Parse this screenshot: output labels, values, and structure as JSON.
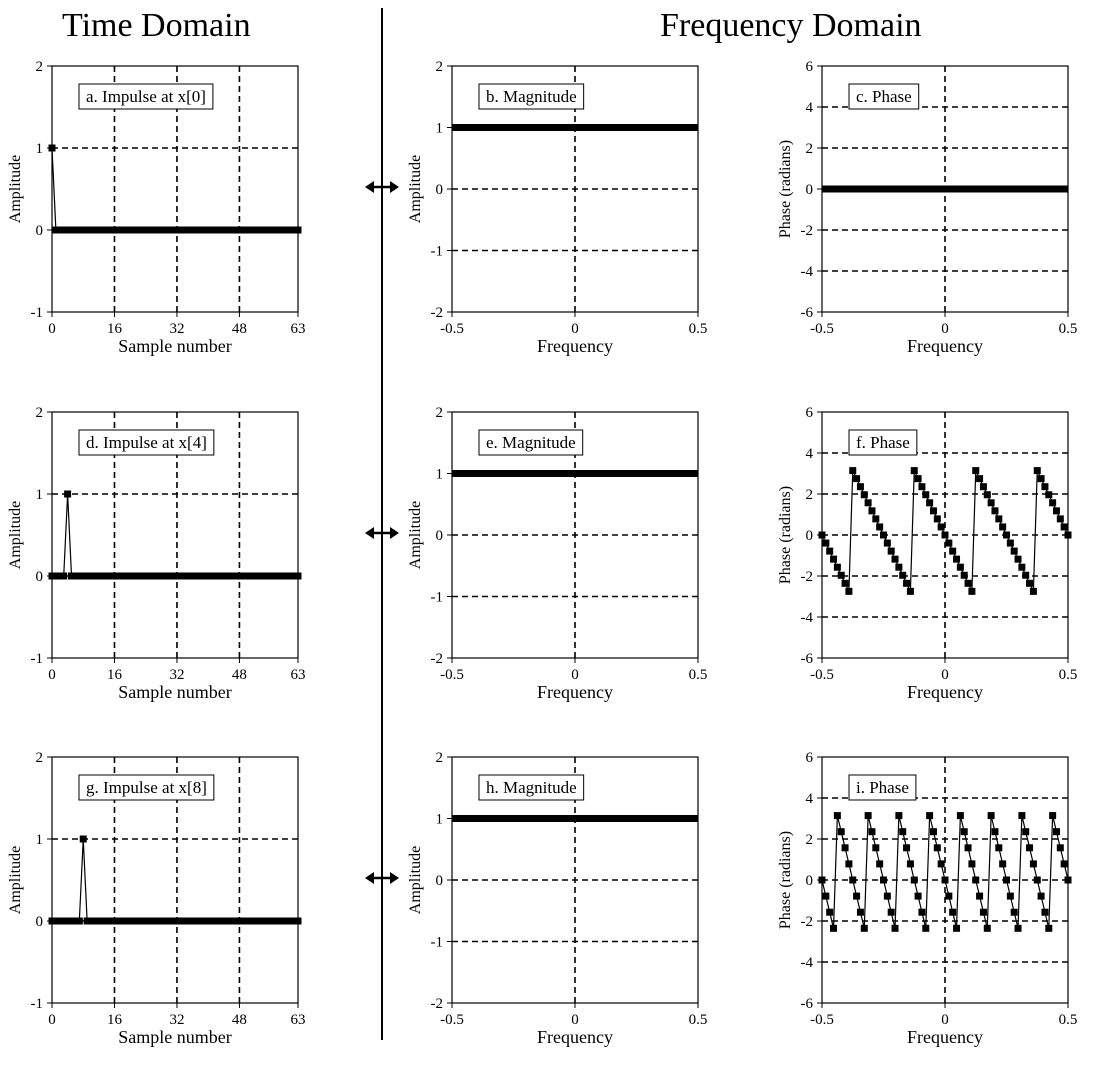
{
  "headings": {
    "time_domain": "Time Domain",
    "frequency_domain": "Frequency Domain"
  },
  "chart_data": [
    {
      "id": "a",
      "type": "line",
      "title": "a.  Impulse at x[0]",
      "xlabel": "Sample number",
      "ylabel": "Amplitude",
      "xlim": [
        0,
        63
      ],
      "ylim": [
        -1,
        2
      ],
      "xticks": [
        0,
        16,
        32,
        48,
        63
      ],
      "xtick_labels": [
        "0",
        "16",
        "32",
        "48",
        "63"
      ],
      "yticks": [
        -1,
        0,
        1,
        2
      ],
      "ytick_labels": [
        "-1",
        "0",
        "1",
        "2"
      ],
      "grid": "dashed",
      "markers": true,
      "series": [
        {
          "x_start": 0,
          "x_step": 1,
          "count": 64,
          "impulse_at": 0,
          "impulse_value": 1,
          "baseline": 0
        }
      ]
    },
    {
      "id": "b",
      "type": "line",
      "title": "b.  Magnitude",
      "xlabel": "Frequency",
      "ylabel": "Amplitude",
      "xlim": [
        -0.5,
        0.5
      ],
      "ylim": [
        -2,
        2
      ],
      "xticks": [
        -0.5,
        0,
        0.5
      ],
      "xtick_labels": [
        "-0.5",
        "0",
        "0.5"
      ],
      "yticks": [
        -2,
        -1,
        0,
        1,
        2
      ],
      "ytick_labels": [
        "-2",
        "-1",
        "0",
        "1",
        "2"
      ],
      "grid": "dashed",
      "markers": false,
      "series": [
        {
          "x": [
            -0.5,
            0.5
          ],
          "y": [
            1,
            1
          ]
        }
      ]
    },
    {
      "id": "c",
      "type": "line",
      "title": "c.  Phase",
      "xlabel": "Frequency",
      "ylabel": "Phase (radians)",
      "xlim": [
        -0.5,
        0.5
      ],
      "ylim": [
        -6,
        6
      ],
      "xticks": [
        -0.5,
        0,
        0.5
      ],
      "xtick_labels": [
        "-0.5",
        "0",
        "0.5"
      ],
      "yticks": [
        -6,
        -4,
        -2,
        0,
        2,
        4,
        6
      ],
      "ytick_labels": [
        "-6",
        "-4",
        "-2",
        "0",
        "2",
        "4",
        "6"
      ],
      "grid": "dashed",
      "markers": false,
      "series": [
        {
          "x": [
            -0.5,
            0.5
          ],
          "y": [
            0,
            0
          ]
        }
      ]
    },
    {
      "id": "d",
      "type": "line",
      "title": "d.  Impulse at x[4]",
      "xlabel": "Sample number",
      "ylabel": "Amplitude",
      "xlim": [
        0,
        63
      ],
      "ylim": [
        -1,
        2
      ],
      "xticks": [
        0,
        16,
        32,
        48,
        63
      ],
      "xtick_labels": [
        "0",
        "16",
        "32",
        "48",
        "63"
      ],
      "yticks": [
        -1,
        0,
        1,
        2
      ],
      "ytick_labels": [
        "-1",
        "0",
        "1",
        "2"
      ],
      "grid": "dashed",
      "markers": true,
      "series": [
        {
          "x_start": 0,
          "x_step": 1,
          "count": 64,
          "impulse_at": 4,
          "impulse_value": 1,
          "baseline": 0
        }
      ]
    },
    {
      "id": "e",
      "type": "line",
      "title": "e.  Magnitude",
      "xlabel": "Frequency",
      "ylabel": "Amplitude",
      "xlim": [
        -0.5,
        0.5
      ],
      "ylim": [
        -2,
        2
      ],
      "xticks": [
        -0.5,
        0,
        0.5
      ],
      "xtick_labels": [
        "-0.5",
        "0",
        "0.5"
      ],
      "yticks": [
        -2,
        -1,
        0,
        1,
        2
      ],
      "ytick_labels": [
        "-2",
        "-1",
        "0",
        "1",
        "2"
      ],
      "grid": "dashed",
      "markers": false,
      "series": [
        {
          "x": [
            -0.5,
            0.5
          ],
          "y": [
            1,
            1
          ]
        }
      ]
    },
    {
      "id": "f",
      "type": "line",
      "title": "f.  Phase",
      "xlabel": "Frequency",
      "ylabel": "Phase (radians)",
      "xlim": [
        -0.5,
        0.5
      ],
      "ylim": [
        -6,
        6
      ],
      "xticks": [
        -0.5,
        0,
        0.5
      ],
      "xtick_labels": [
        "-0.5",
        "0",
        "0.5"
      ],
      "yticks": [
        -6,
        -4,
        -2,
        0,
        2,
        4,
        6
      ],
      "ytick_labels": [
        "-6",
        "-4",
        "-2",
        "0",
        "2",
        "4",
        "6"
      ],
      "grid": "dashed",
      "markers": true,
      "series": [
        {
          "x_start": -0.5,
          "x_step": 0.015625,
          "count": 65,
          "phase_slope_samples": 4,
          "wrap": true
        }
      ]
    },
    {
      "id": "g",
      "type": "line",
      "title": "g.  Impulse at x[8]",
      "xlabel": "Sample number",
      "ylabel": "Amplitude",
      "xlim": [
        0,
        63
      ],
      "ylim": [
        -1,
        2
      ],
      "xticks": [
        0,
        16,
        32,
        48,
        63
      ],
      "xtick_labels": [
        "0",
        "16",
        "32",
        "48",
        "63"
      ],
      "yticks": [
        -1,
        0,
        1,
        2
      ],
      "ytick_labels": [
        "-1",
        "0",
        "1",
        "2"
      ],
      "grid": "dashed",
      "markers": true,
      "series": [
        {
          "x_start": 0,
          "x_step": 1,
          "count": 64,
          "impulse_at": 8,
          "impulse_value": 1,
          "baseline": 0
        }
      ]
    },
    {
      "id": "h",
      "type": "line",
      "title": "h.  Magnitude",
      "xlabel": "Frequency",
      "ylabel": "Amplitude",
      "xlim": [
        -0.5,
        0.5
      ],
      "ylim": [
        -2,
        2
      ],
      "xticks": [
        -0.5,
        0,
        0.5
      ],
      "xtick_labels": [
        "-0.5",
        "0",
        "0.5"
      ],
      "yticks": [
        -2,
        -1,
        0,
        1,
        2
      ],
      "ytick_labels": [
        "-2",
        "-1",
        "0",
        "1",
        "2"
      ],
      "grid": "dashed",
      "markers": false,
      "series": [
        {
          "x": [
            -0.5,
            0.5
          ],
          "y": [
            1,
            1
          ]
        }
      ]
    },
    {
      "id": "i",
      "type": "line",
      "title": "i.  Phase",
      "xlabel": "Frequency",
      "ylabel": "Phase (radians)",
      "xlim": [
        -0.5,
        0.5
      ],
      "ylim": [
        -6,
        6
      ],
      "xticks": [
        -0.5,
        0,
        0.5
      ],
      "xtick_labels": [
        "-0.5",
        "0",
        "0.5"
      ],
      "yticks": [
        -6,
        -4,
        -2,
        0,
        2,
        4,
        6
      ],
      "ytick_labels": [
        "-6",
        "-4",
        "-2",
        "0",
        "2",
        "4",
        "6"
      ],
      "grid": "dashed",
      "markers": true,
      "series": [
        {
          "x_start": -0.5,
          "x_step": 0.015625,
          "count": 65,
          "phase_slope_samples": 8,
          "wrap": true
        }
      ]
    }
  ]
}
